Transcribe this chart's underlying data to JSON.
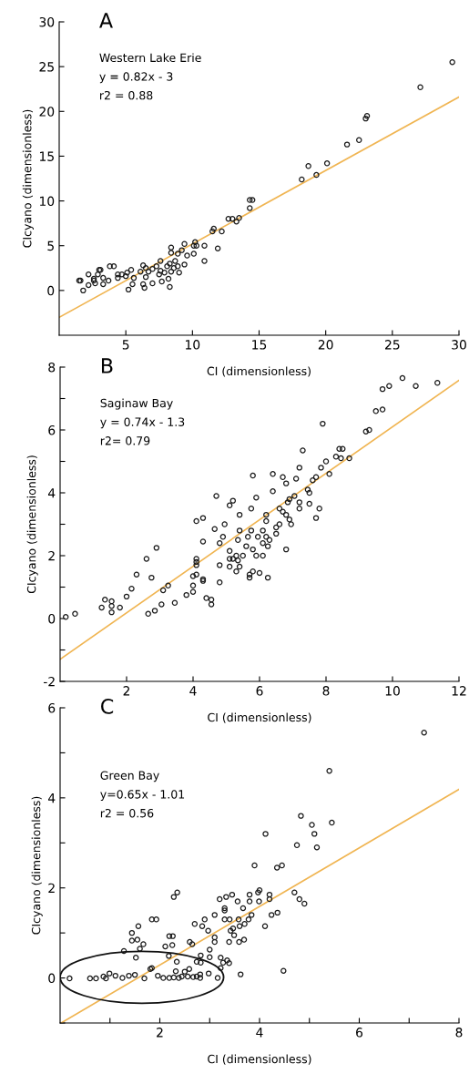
{
  "chart_data": [
    {
      "type": "scatter",
      "xlabel": "CI (dimensionless)",
      "ylabel": "CIcyano (dimensionless)",
      "xlim": [
        0,
        30
      ],
      "ylim": [
        -5,
        30
      ],
      "xticks": [
        5,
        10,
        15,
        20,
        25,
        30
      ],
      "yticks": [
        0,
        5,
        10,
        15,
        20,
        25,
        30
      ],
      "annotations": [
        "A",
        "Western Lake Erie",
        "y = 0.82x - 3",
        "r2 = 0.88"
      ],
      "series": [
        {
          "type": "scatter",
          "marker": "circle",
          "color": "#1a1a1a",
          "x": [
            29.5,
            27.1,
            23.1,
            23.0,
            22.5,
            21.6,
            20.1,
            19.3,
            18.7,
            18.2,
            14.5,
            14.3,
            14.3,
            13.5,
            13.0,
            12.7,
            13.3,
            11.6,
            11.5,
            12.2,
            11.9,
            10.9,
            10.9,
            10.2,
            10.1,
            9.4,
            10.1,
            9.6,
            9.2,
            8.9,
            8.4,
            8.4,
            8.7,
            9.4,
            8.9,
            8.3,
            8.1,
            9.0,
            8.4,
            7.6,
            7.3,
            7.0,
            6.7,
            7.5,
            7.6,
            7.7,
            8.2,
            8.3,
            7.0,
            6.4,
            6.3,
            6.5,
            6.3,
            6.1,
            5.6,
            5.5,
            5.4,
            5.2,
            5.1,
            5.0,
            4.7,
            4.4,
            4.4,
            4.1,
            3.8,
            3.7,
            3.3,
            3.3,
            3.1,
            3.0,
            2.9,
            2.6,
            2.6,
            2.7,
            2.2,
            2.2,
            1.8,
            1.6,
            1.5,
            10.3,
            6.5,
            7.9,
            8.6
          ],
          "values": [
            25.5,
            22.7,
            19.5,
            19.2,
            16.8,
            16.3,
            14.2,
            12.9,
            13.9,
            12.4,
            10.1,
            10.1,
            9.2,
            8.1,
            8.0,
            8.0,
            7.7,
            6.9,
            6.6,
            6.6,
            4.7,
            3.3,
            5.0,
            5.4,
            5.0,
            5.2,
            4.1,
            3.9,
            4.5,
            4.1,
            4.8,
            4.2,
            3.3,
            2.9,
            2.7,
            3.0,
            2.7,
            2.0,
            2.1,
            3.3,
            2.7,
            2.4,
            2.1,
            1.8,
            2.2,
            1.0,
            1.3,
            0.4,
            0.8,
            0.3,
            0.7,
            1.5,
            2.8,
            2.1,
            1.4,
            0.7,
            2.3,
            0.1,
            2.0,
            1.6,
            1.8,
            1.8,
            1.4,
            2.7,
            2.7,
            1.1,
            0.7,
            1.4,
            2.3,
            2.3,
            1.8,
            1.3,
            1.1,
            0.8,
            0.6,
            1.8,
            0.0,
            1.1,
            1.1,
            5.0,
            2.5,
            2.0,
            2.5
          ]
        },
        {
          "type": "line",
          "color": "#f0b552",
          "x": [
            0,
            30
          ],
          "values": [
            -3,
            21.6
          ]
        }
      ]
    },
    {
      "type": "scatter",
      "xlabel": "CI (dimensionless)",
      "ylabel": "CIcyano (dimensionless)",
      "xlim": [
        0,
        12
      ],
      "ylim": [
        -2,
        8
      ],
      "xticks": [
        2,
        4,
        6,
        8,
        10,
        12
      ],
      "yticks": [
        -2,
        {
          "value": -1,
          "label": null
        },
        0,
        {
          "value": 1,
          "label": null
        },
        2,
        {
          "value": 3,
          "label": null
        },
        4,
        {
          "value": 5,
          "label": null
        },
        6,
        {
          "value": 7,
          "label": null
        },
        8
      ],
      "annotations": [
        "B",
        "Saginaw Bay",
        "y = 0.74x - 1.3",
        "r2= 0.79"
      ],
      "series": [
        {
          "type": "scatter",
          "marker": "circle",
          "color": "#1a1a1a",
          "x": [
            11.35,
            10.7,
            10.3,
            9.9,
            9.7,
            9.7,
            9.5,
            9.3,
            9.2,
            7.9,
            8.7,
            8.5,
            8.4,
            8.3,
            8.45,
            8.1,
            8.0,
            7.85,
            7.3,
            7.2,
            7.7,
            7.6,
            7.45,
            7.5,
            7.1,
            6.8,
            6.7,
            6.4,
            5.8,
            6.4,
            7.05,
            6.9,
            7.2,
            7.5,
            7.8,
            7.7,
            6.85,
            6.6,
            6.7,
            6.8,
            6.9,
            6.95,
            7.2,
            6.2,
            6.2,
            5.75,
            5.9,
            5.4,
            5.2,
            5.1,
            4.7,
            4.3,
            4.1,
            4.95,
            4.65,
            5.4,
            5.75,
            5.65,
            6.1,
            5.95,
            6.2,
            6.3,
            6.5,
            6.6,
            6.5,
            6.1,
            6.25,
            5.6,
            5.8,
            5.35,
            4.9,
            4.8,
            4.3,
            5.1,
            5.3,
            5.5,
            5.2,
            5.35,
            5.1,
            5.9,
            6.1,
            6.8,
            4.8,
            5.1,
            5.4,
            5.3,
            5.7,
            5.7,
            5.8,
            6.0,
            6.25,
            4.1,
            4.1,
            4.1,
            4.0,
            4.1,
            4.3,
            4.3,
            4.0,
            4.8,
            4.0,
            3.8,
            4.4,
            4.55,
            4.55,
            3.45,
            3.25,
            3.1,
            3.05,
            2.85,
            2.65,
            2.9,
            2.6,
            2.75,
            2.3,
            2.15,
            2.0,
            1.8,
            1.55,
            1.55,
            1.55,
            1.35,
            1.25,
            0.45,
            0.17
          ],
          "values": [
            7.5,
            7.4,
            7.65,
            7.4,
            7.3,
            6.65,
            6.6,
            6.0,
            5.95,
            6.2,
            5.1,
            5.4,
            5.4,
            5.15,
            5.1,
            4.6,
            5.0,
            4.8,
            5.35,
            4.8,
            4.5,
            4.4,
            4.1,
            4.0,
            4.45,
            4.3,
            4.5,
            4.6,
            4.55,
            4.05,
            3.9,
            3.8,
            3.7,
            3.65,
            3.5,
            3.2,
            3.7,
            3.5,
            3.4,
            3.3,
            3.15,
            3.0,
            3.5,
            3.1,
            3.3,
            3.5,
            3.85,
            3.3,
            3.75,
            3.6,
            3.9,
            3.2,
            3.1,
            3.0,
            2.85,
            2.8,
            2.8,
            2.6,
            2.8,
            2.6,
            2.6,
            2.5,
            2.7,
            3.0,
            2.9,
            2.4,
            2.3,
            2.3,
            2.2,
            2.5,
            2.6,
            2.4,
            2.45,
            2.15,
            2.0,
            2.0,
            1.9,
            1.85,
            1.9,
            2.0,
            2.0,
            2.2,
            1.7,
            1.65,
            1.65,
            1.5,
            1.4,
            1.3,
            1.5,
            1.45,
            1.3,
            1.9,
            1.8,
            1.7,
            1.35,
            1.4,
            1.2,
            1.25,
            1.05,
            1.15,
            0.85,
            0.75,
            0.65,
            0.6,
            0.45,
            0.5,
            1.05,
            0.9,
            0.45,
            0.25,
            0.15,
            2.25,
            1.9,
            1.3,
            1.4,
            0.95,
            0.7,
            0.35,
            0.55,
            0.4,
            0.2,
            0.6,
            0.35,
            0.15,
            0.05
          ]
        },
        {
          "type": "line",
          "color": "#f0b552",
          "x": [
            0,
            12
          ],
          "values": [
            -1.3,
            7.58
          ]
        }
      ]
    },
    {
      "type": "scatter",
      "xlabel": "CI (dimensionless)",
      "ylabel": "CIcyano (dimensionless)",
      "xlim": [
        0,
        8
      ],
      "ylim": [
        -1,
        6
      ],
      "xticks": [
        {
          "value": 1,
          "label": null
        },
        2,
        {
          "value": 3,
          "label": null
        },
        4,
        {
          "value": 5,
          "label": null
        },
        6,
        {
          "value": 7,
          "label": null
        },
        8
      ],
      "yticks": [
        {
          "value": -1,
          "label": null
        },
        0,
        {
          "value": 1,
          "label": null
        },
        2,
        {
          "value": 3,
          "label": null
        },
        4,
        {
          "value": 5,
          "label": null
        },
        6
      ],
      "annotations": [
        "C",
        "Green Bay",
        "y=0.65x - 1.01",
        "r2 = 0.56"
      ],
      "series": [
        {
          "type": "scatter",
          "marker": "circle",
          "color": "#1a1a1a",
          "x": [
            7.3,
            5.4,
            4.83,
            5.05,
            5.45,
            5.1,
            4.12,
            4.75,
            5.15,
            3.9,
            4.35,
            4.45,
            4.0,
            3.97,
            3.8,
            4.2,
            4.7,
            4.8,
            4.9,
            3.45,
            3.33,
            3.2,
            3.56,
            3.8,
            3.99,
            4.2,
            3.3,
            3.3,
            3.67,
            3.84,
            4.24,
            4.36,
            4.11,
            3.1,
            3.58,
            3.78,
            3.7,
            3.6,
            3.47,
            3.42,
            3.3,
            3.4,
            2.9,
            2.85,
            2.7,
            2.97,
            3.1,
            3.1,
            3.49,
            3.59,
            3.69,
            3.39,
            2.65,
            2.6,
            2.35,
            2.28,
            1.93,
            1.84,
            1.57,
            1.44,
            1.55,
            1.44,
            1.67,
            1.6,
            1.28,
            1.52,
            2.19,
            2.26,
            2.25,
            2.11,
            2.18,
            2.34,
            3.0,
            3.0,
            2.82,
            2.74,
            2.82,
            3.22,
            3.27,
            3.35,
            3.39,
            3.22,
            1.84,
            1.81,
            4.48,
            3.62,
            3.16,
            2.98,
            2.81,
            2.81,
            2.67,
            2.59,
            2.5,
            2.44,
            2.32,
            2.28,
            2.19,
            2.07,
            1.96,
            1.69,
            1.5,
            1.38,
            1.25,
            1.11,
            0.99,
            0.92,
            0.87,
            0.72,
            0.6,
            0.19,
            2.56,
            2.74,
            2.38
          ],
          "values": [
            5.45,
            4.6,
            3.6,
            3.4,
            3.45,
            3.2,
            3.2,
            2.95,
            2.9,
            2.5,
            2.45,
            2.5,
            1.95,
            1.9,
            1.85,
            1.85,
            1.9,
            1.75,
            1.65,
            1.85,
            1.8,
            1.75,
            1.7,
            1.7,
            1.7,
            1.75,
            1.5,
            1.55,
            1.55,
            1.4,
            1.4,
            1.45,
            1.15,
            1.4,
            1.3,
            1.3,
            1.2,
            1.15,
            1.1,
            1.05,
            1.3,
            1.3,
            1.3,
            1.15,
            1.2,
            1.05,
            0.9,
            0.8,
            0.95,
            0.8,
            0.85,
            0.8,
            0.75,
            0.8,
            1.9,
            1.8,
            1.3,
            1.3,
            1.15,
            1.0,
            0.85,
            0.83,
            0.75,
            0.65,
            0.6,
            0.45,
            0.93,
            0.93,
            0.73,
            0.7,
            0.49,
            0.36,
            0.63,
            0.46,
            0.5,
            0.36,
            0.34,
            0.45,
            0.34,
            0.39,
            0.33,
            0.22,
            0.22,
            0.2,
            0.16,
            0.08,
            0.0,
            0.1,
            0.08,
            0.0,
            0.02,
            0.2,
            0.14,
            0.03,
            0.15,
            0.01,
            0.0,
            0.0,
            0.05,
            -0.01,
            0.07,
            0.05,
            0.0,
            0.05,
            0.1,
            -0.01,
            0.03,
            -0.01,
            -0.01,
            -0.01,
            0.03,
            0.03,
            0.0
          ]
        },
        {
          "type": "line",
          "color": "#f0b552",
          "x": [
            0.02,
            8
          ],
          "values": [
            -1.0,
            4.19
          ]
        }
      ]
    }
  ]
}
